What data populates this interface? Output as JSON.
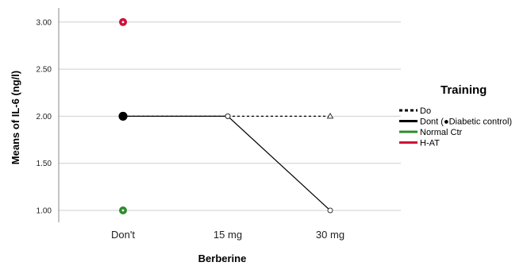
{
  "chart_data": {
    "type": "line",
    "xlabel": "Berberine",
    "ylabel": "Means of IL-6 (ng/l)",
    "categories": [
      "Don't",
      "15 mg",
      "30 mg"
    ],
    "ylim": [
      0.9,
      3.1
    ],
    "yticks": [
      1.0,
      1.5,
      2.0,
      2.5,
      3.0
    ],
    "ytick_labels": [
      "1.00",
      "1.50",
      "2.00",
      "2.50",
      "3.00"
    ],
    "grid": true,
    "legend": {
      "title": "Training",
      "placement": "right",
      "entries": [
        {
          "label": "Do",
          "style": "dashed",
          "color": "#000000"
        },
        {
          "label": "Dont (●Diabetic control)",
          "style": "solid",
          "color": "#000000"
        },
        {
          "label": "Normal Ctr",
          "style": "solid",
          "color": "#2e8b2e"
        },
        {
          "label": "H-AT",
          "style": "solid",
          "color": "#d0103a"
        }
      ]
    },
    "series": [
      {
        "name": "Do",
        "values": [
          2.0,
          2.0,
          2.0
        ],
        "color": "#000000",
        "style": "dashed",
        "markers": [
          "filled-circle",
          "open-circle",
          "open-triangle"
        ]
      },
      {
        "name": "Dont (●Diabetic control)",
        "values": [
          2.0,
          2.0,
          1.0
        ],
        "color": "#000000",
        "style": "solid",
        "markers": [
          "filled-circle",
          "open-circle",
          "open-circle"
        ]
      },
      {
        "name": "Normal Ctr",
        "values": [
          1.0,
          null,
          null
        ],
        "color": "#2e8b2e",
        "style": "solid",
        "markers": [
          "filled-circle"
        ]
      },
      {
        "name": "H-AT",
        "values": [
          3.0,
          null,
          null
        ],
        "color": "#d0103a",
        "style": "solid",
        "markers": [
          "filled-circle"
        ]
      }
    ]
  }
}
